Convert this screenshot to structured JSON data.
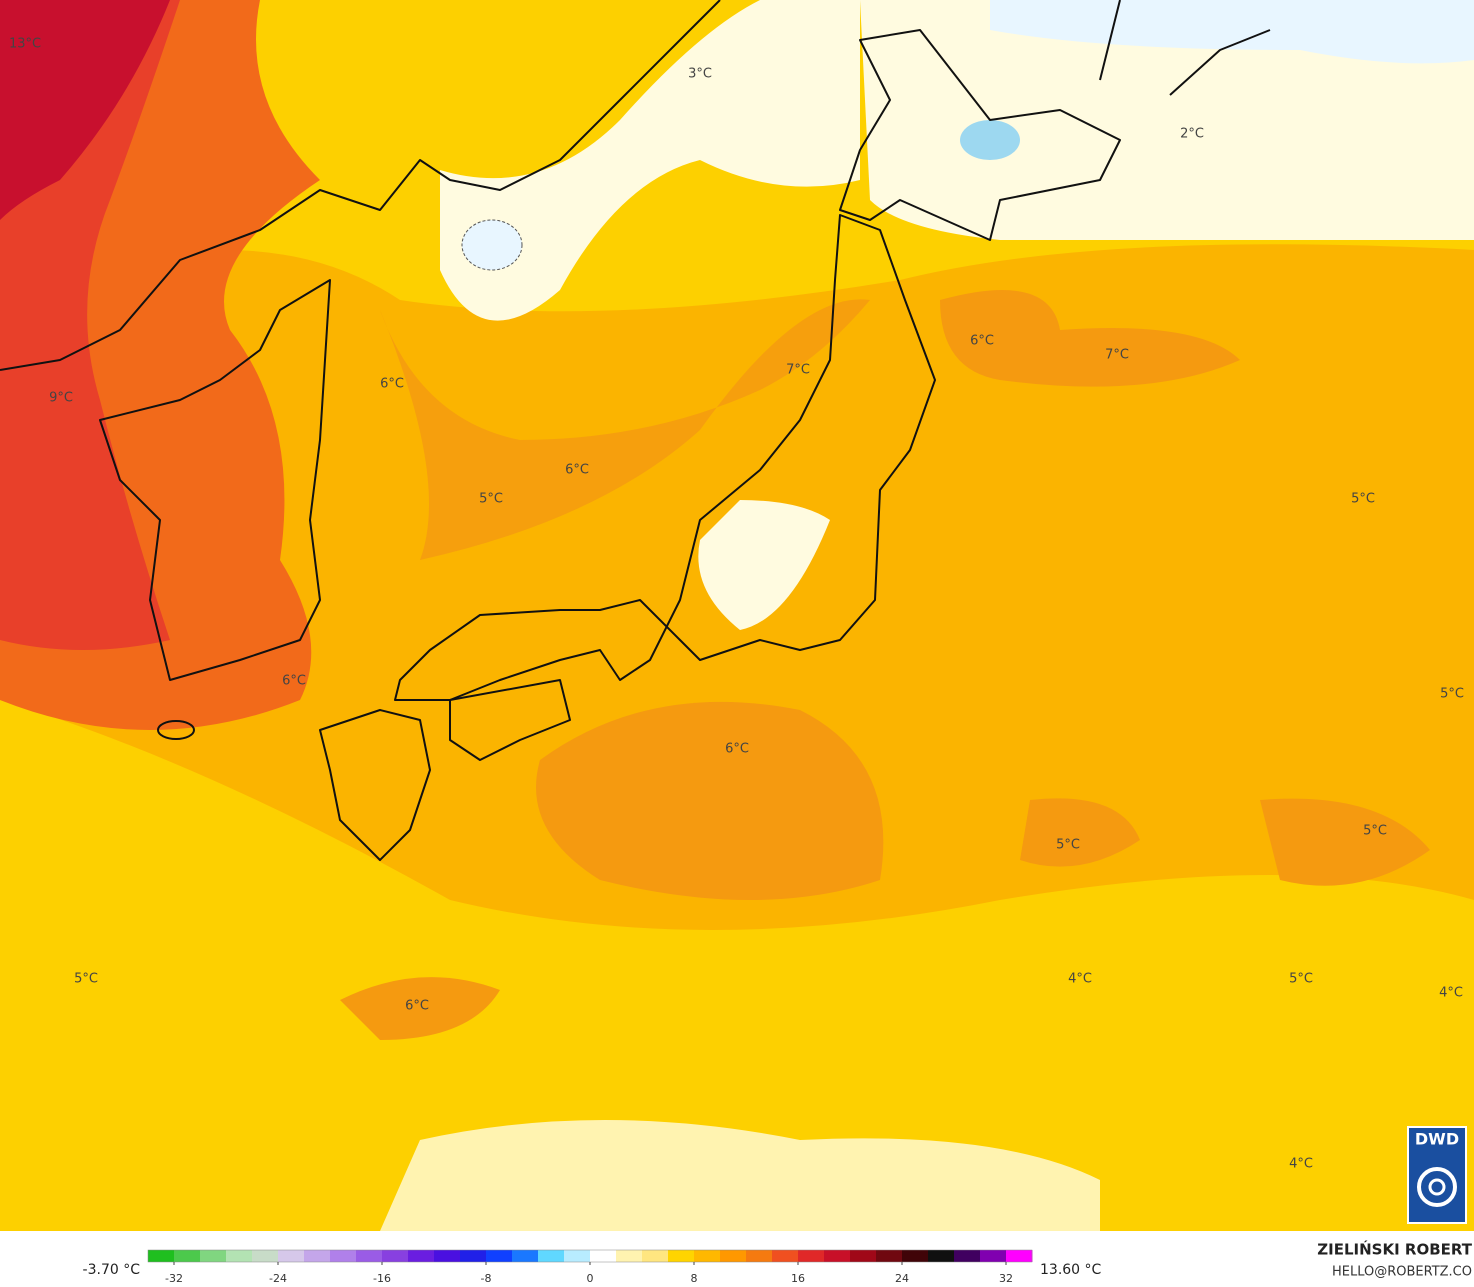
{
  "map": {
    "labels": [
      "13°C",
      "3°C",
      "2°C",
      "6°C",
      "7°C",
      "7°C",
      "6°C",
      "9°C",
      "6°C",
      "5°C",
      "5°C",
      "6°C",
      "5°C",
      "6°C",
      "5°C",
      "5°C",
      "5°C",
      "4°C",
      "5°C",
      "4°C",
      "6°C",
      "4°C"
    ]
  },
  "legend": {
    "min_label": "-3.70 °C",
    "max_label": "13.60 °C",
    "range": [
      -34,
      34
    ],
    "ticks": [
      -32,
      -24,
      -16,
      -8,
      0,
      8,
      16,
      24,
      32
    ],
    "colors": [
      "#1fbf1f",
      "#4cc94c",
      "#80d680",
      "#b3e3b3",
      "#c8dcc8",
      "#d6c8ea",
      "#c4a6ea",
      "#b080ea",
      "#9a5ce6",
      "#8840e0",
      "#6a1ee0",
      "#4a10e0",
      "#2020e8",
      "#1040ff",
      "#1a78ff",
      "#60d8ff",
      "#b8ecff",
      "#ffffff",
      "#fff3b0",
      "#ffe680",
      "#ffd400",
      "#ffb800",
      "#ff9800",
      "#f57a10",
      "#f05020",
      "#e02828",
      "#c81028",
      "#a00818",
      "#700810",
      "#400408",
      "#101010",
      "#400060",
      "#8000b0",
      "#ff00ff"
    ]
  },
  "credit": {
    "author": "ZIELIŃSKI ROBERT",
    "email": "HELLO@ROBERTZ.CO"
  },
  "logo": {
    "text": "DWD"
  }
}
